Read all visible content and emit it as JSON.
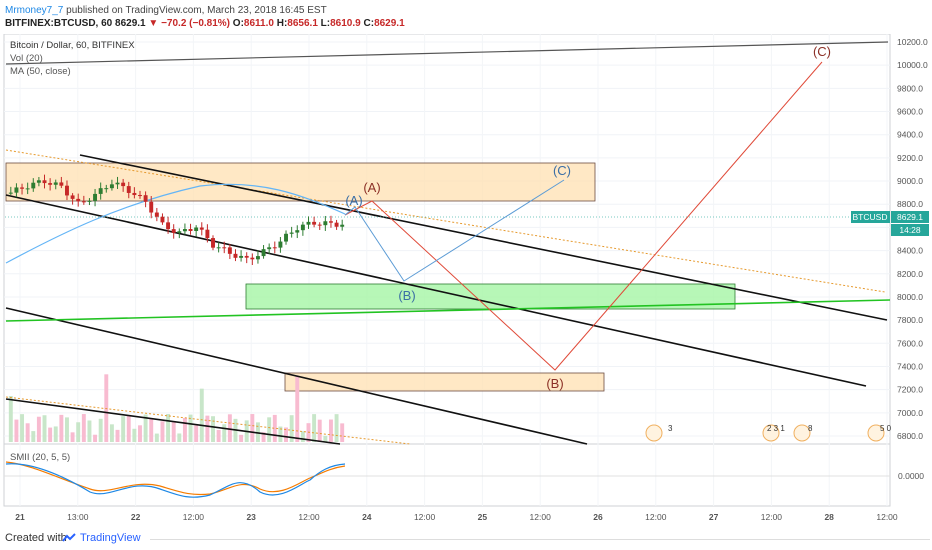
{
  "header": {
    "author": "Mrmoney7_7",
    "published": "published on TradingView.com, March 23, 2018 16:45 EST",
    "symbol": "BITFINEX:BTCUSD, 60",
    "last": "8629.1",
    "arrow": "▼",
    "change": "−70.2 (−0.81%)",
    "o_label": "O:",
    "o_value": "8611.0",
    "h_label": "H:",
    "h_value": "8656.1",
    "l_label": "L:",
    "l_value": "8610.9",
    "c_label": "C:",
    "c_value": "8629.1"
  },
  "legend": {
    "main": "Bitcoin / Dollar, 60, BITFINEX",
    "vol": "Vol (20)",
    "ma": "MA (50, close)",
    "smii": "SMII (20, 5, 5)"
  },
  "price_tag": {
    "symbol": "BTCUSD",
    "value": "8629.1",
    "countdown": "14:28"
  },
  "footer": {
    "created": "Created with",
    "brand": "TradingView"
  },
  "colors": {
    "down": "#c62828",
    "up": "#2e7d32",
    "ma": "#64b5f6",
    "orange_box": "#ffe0b2",
    "green_box": "#a5f5a5",
    "wave_red": "#e04b3a",
    "wave_blue": "#5b9bd5"
  },
  "chart_data": {
    "type": "candlestick",
    "symbol": "BITFINEX:BTCUSD",
    "interval": "60",
    "y_axis": {
      "ticks": [
        "10200.0",
        "10000.0",
        "9800.0",
        "9600.0",
        "9400.0",
        "9200.0",
        "9000.0",
        "8800.0",
        "8600.0",
        "8400.0",
        "8200.0",
        "8000.0",
        "7800.0",
        "7600.0",
        "7400.0",
        "7200.0",
        "7000.0",
        "6800.0"
      ],
      "ylim": [
        6700,
        10240
      ]
    },
    "x_axis": {
      "ticks": [
        "21",
        "13:00",
        "22",
        "12:00",
        "23",
        "12:00",
        "24",
        "12:00",
        "25",
        "12:00",
        "26",
        "12:00",
        "27",
        "12:00",
        "28",
        "12:00"
      ]
    },
    "price_series": [
      {
        "x": 0,
        "y": 8900
      },
      {
        "x": 4,
        "y": 8960
      },
      {
        "x": 8,
        "y": 9000
      },
      {
        "x": 12,
        "y": 8950
      },
      {
        "x": 16,
        "y": 8800
      },
      {
        "x": 20,
        "y": 8880
      },
      {
        "x": 24,
        "y": 8990
      },
      {
        "x": 28,
        "y": 8920
      },
      {
        "x": 32,
        "y": 8820
      },
      {
        "x": 36,
        "y": 8620
      },
      {
        "x": 40,
        "y": 8550
      },
      {
        "x": 44,
        "y": 8610
      },
      {
        "x": 48,
        "y": 8450
      },
      {
        "x": 52,
        "y": 8380
      },
      {
        "x": 56,
        "y": 8320
      },
      {
        "x": 60,
        "y": 8390
      },
      {
        "x": 64,
        "y": 8480
      },
      {
        "x": 68,
        "y": 8600
      },
      {
        "x": 72,
        "y": 8640
      },
      {
        "x": 76,
        "y": 8629.1
      }
    ],
    "waves": {
      "red": [
        {
          "label": "",
          "date": "2018-03-23 22:00",
          "price": 8629
        },
        {
          "label": "(A)",
          "date": "2018-03-24 02:00",
          "price": 8800
        },
        {
          "label": "(B)",
          "date": "2018-03-25 19:00",
          "price": 7280
        },
        {
          "label": "(C)",
          "date": "2018-03-28 02:00",
          "price": 10000
        }
      ],
      "blue": [
        {
          "label": "",
          "date": "2018-03-23 22:00",
          "price": 8629
        },
        {
          "label": "(A)",
          "date": "2018-03-24 00:00",
          "price": 8700
        },
        {
          "label": "(B)",
          "date": "2018-03-24 10:00",
          "price": 8060
        },
        {
          "label": "(C)",
          "date": "2018-03-25 20:00",
          "price": 8950
        }
      ]
    },
    "zones": [
      {
        "color": "orange",
        "price_high": 9120,
        "price_low": 8780
      },
      {
        "color": "green",
        "price_high": 8030,
        "price_low": 7820
      },
      {
        "color": "orange",
        "price_high": 7250,
        "price_low": 7080
      }
    ],
    "indicators": [
      "Vol (20)",
      "MA (50, close)",
      "SMII (20, 5, 5)"
    ],
    "smii_tick": "0.0000",
    "event_badges": [
      "3",
      "2 3 1",
      "8",
      "5 0"
    ],
    "grid": true
  }
}
